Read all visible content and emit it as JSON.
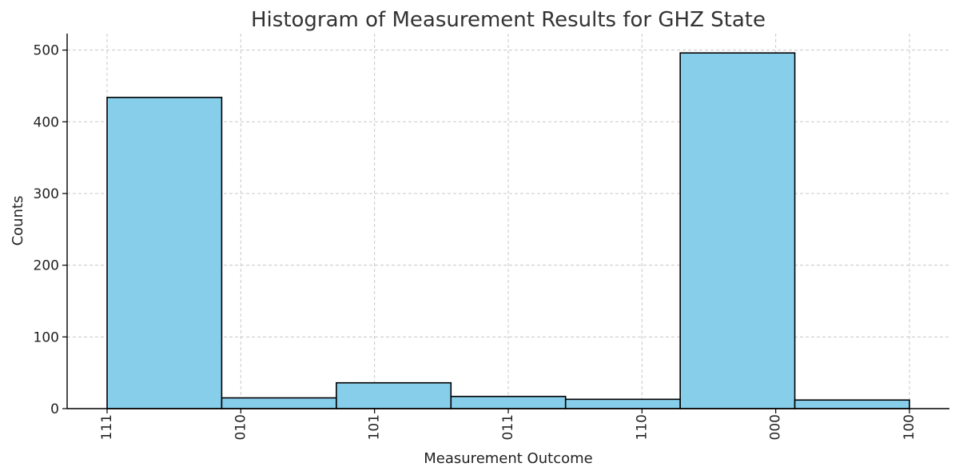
{
  "chart_data": {
    "type": "bar",
    "title": "Histogram of Measurement Results for GHZ State",
    "xlabel": "Measurement Outcome",
    "ylabel": "Counts",
    "tick_labels": [
      "111",
      "010",
      "101",
      "011",
      "110",
      "000",
      "100"
    ],
    "bins": [
      {
        "value": 434
      },
      {
        "value": 15
      },
      {
        "value": 36
      },
      {
        "value": 17
      },
      {
        "value": 13
      },
      {
        "value": 496
      },
      {
        "value": 12
      }
    ],
    "y_ticks": [
      0,
      100,
      200,
      300,
      400,
      500
    ],
    "ylim": [
      0,
      523
    ],
    "grid": true,
    "colors": {
      "bar_fill": "#87ceeb",
      "bar_edge": "#000000"
    }
  }
}
